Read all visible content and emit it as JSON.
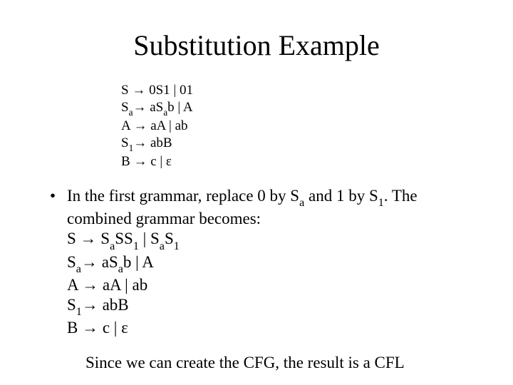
{
  "title": "Substitution Example",
  "g1": {
    "r1_lhs": "S",
    "r1_rhs": "0S1 | 01",
    "r2_lhs_base": "S",
    "r2_lhs_sub": "a",
    "r2_rhs_pre": "aS",
    "r2_rhs_mid_sub": "a",
    "r2_rhs_post": "b | A",
    "r3_lhs": "A",
    "r3_rhs": "aA | ab",
    "r4_lhs_base": "S",
    "r4_lhs_sub": "1",
    "r4_rhs": "abB",
    "r5_lhs": "B",
    "r5_rhs": "c | ε"
  },
  "bullet": {
    "dot": "•",
    "text_pre": "In the first grammar, replace 0 by S",
    "text_sub1": "a",
    "text_mid": " and 1 by S",
    "text_sub2": "1",
    "text_post": ".  The combined grammar becomes:"
  },
  "g2": {
    "r1_lhs": "S",
    "r1_rhs_p1": "S",
    "r1_rhs_s1": "a",
    "r1_rhs_p2": "SS",
    "r1_rhs_s2": "1",
    "r1_rhs_p3": " | S",
    "r1_rhs_s3": "a",
    "r1_rhs_p4": "S",
    "r1_rhs_s4": "1",
    "r2_lhs_base": "S",
    "r2_lhs_sub": "a",
    "r2_rhs_pre": "aS",
    "r2_rhs_mid_sub": "a",
    "r2_rhs_post": "b | A",
    "r3_lhs": "A",
    "r3_rhs": "aA | ab",
    "r4_lhs_base": "S",
    "r4_lhs_sub": "1",
    "r4_rhs": "abB",
    "r5_lhs": "B",
    "r5_rhs": "c | ε"
  },
  "arrow": "→",
  "closing": "Since we can create the CFG, the result is a CFL"
}
